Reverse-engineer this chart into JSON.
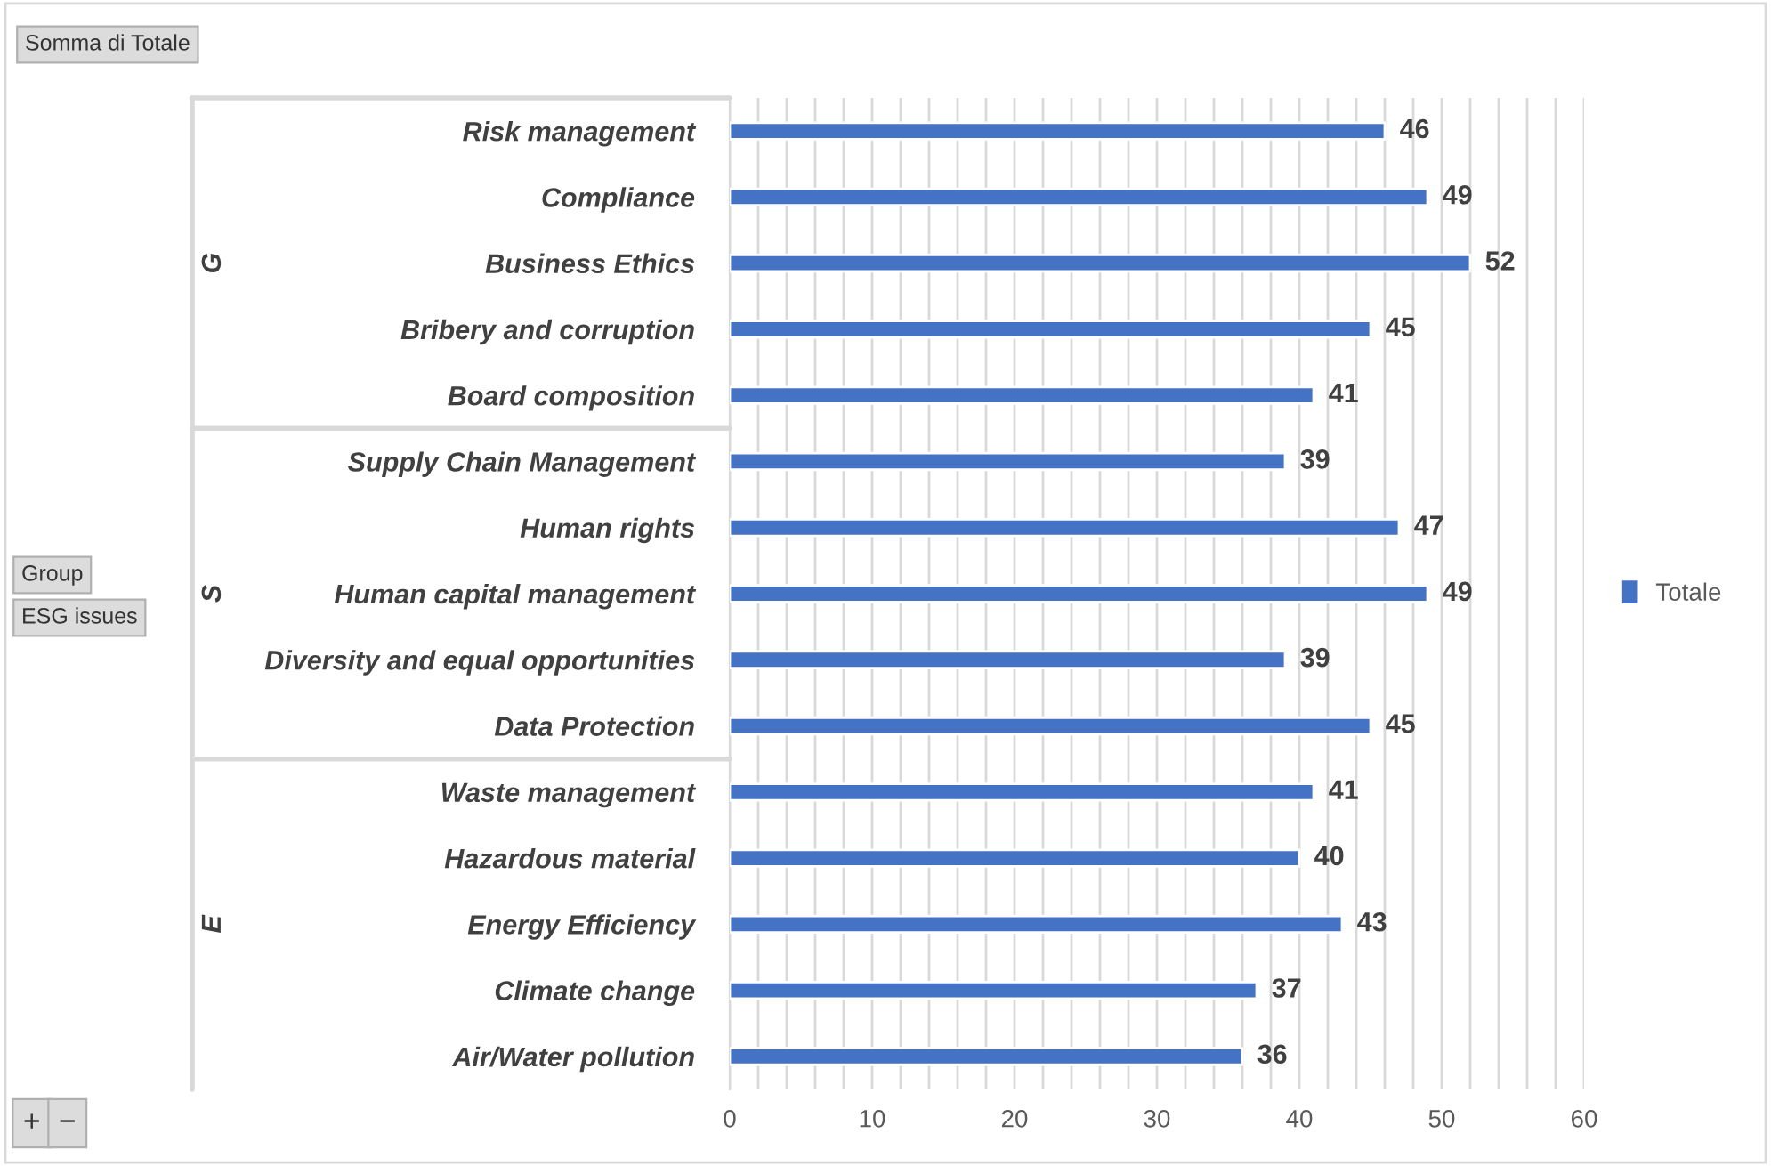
{
  "chart_data": {
    "type": "bar",
    "orientation": "horizontal",
    "categories": [
      "Risk management",
      "Compliance",
      "Business Ethics",
      "Bribery and corruption",
      "Board composition",
      "Supply Chain Management",
      "Human rights",
      "Human capital management",
      "Diversity and equal opportunities",
      "Data Protection",
      "Waste management",
      "Hazardous material",
      "Energy Efficiency",
      "Climate change",
      "Air/Water pollution"
    ],
    "series": [
      {
        "name": "Totale",
        "color": "#4472c4",
        "values": [
          46,
          49,
          52,
          45,
          41,
          39,
          47,
          49,
          39,
          45,
          41,
          40,
          43,
          37,
          36
        ]
      }
    ],
    "data_labels": true,
    "xlim": [
      0,
      60
    ],
    "xticks": [
      0,
      {
        "value": 2,
        "label": null
      },
      {
        "value": 4,
        "label": null
      },
      {
        "value": 6,
        "label": null
      },
      {
        "value": 8,
        "label": null
      },
      10,
      {
        "value": 12,
        "label": null
      },
      {
        "value": 14,
        "label": null
      },
      {
        "value": 16,
        "label": null
      },
      {
        "value": 18,
        "label": null
      },
      20,
      {
        "value": 22,
        "label": null
      },
      {
        "value": 24,
        "label": null
      },
      {
        "value": 26,
        "label": null
      },
      {
        "value": 28,
        "label": null
      },
      30,
      {
        "value": 32,
        "label": null
      },
      {
        "value": 34,
        "label": null
      },
      {
        "value": 36,
        "label": null
      },
      {
        "value": 38,
        "label": null
      },
      40,
      {
        "value": 42,
        "label": null
      },
      {
        "value": 44,
        "label": null
      },
      {
        "value": 46,
        "label": null
      },
      {
        "value": 48,
        "label": null
      },
      50,
      {
        "value": 52,
        "label": null
      },
      {
        "value": 54,
        "label": null
      },
      {
        "value": 56,
        "label": null
      },
      {
        "value": 58,
        "label": null
      },
      60
    ],
    "grid": "x",
    "legend": "right",
    "annotations": [
      "G",
      "S",
      "E",
      "Somma di Totale",
      "Group",
      "ESG issues",
      "+",
      "−"
    ]
  }
}
